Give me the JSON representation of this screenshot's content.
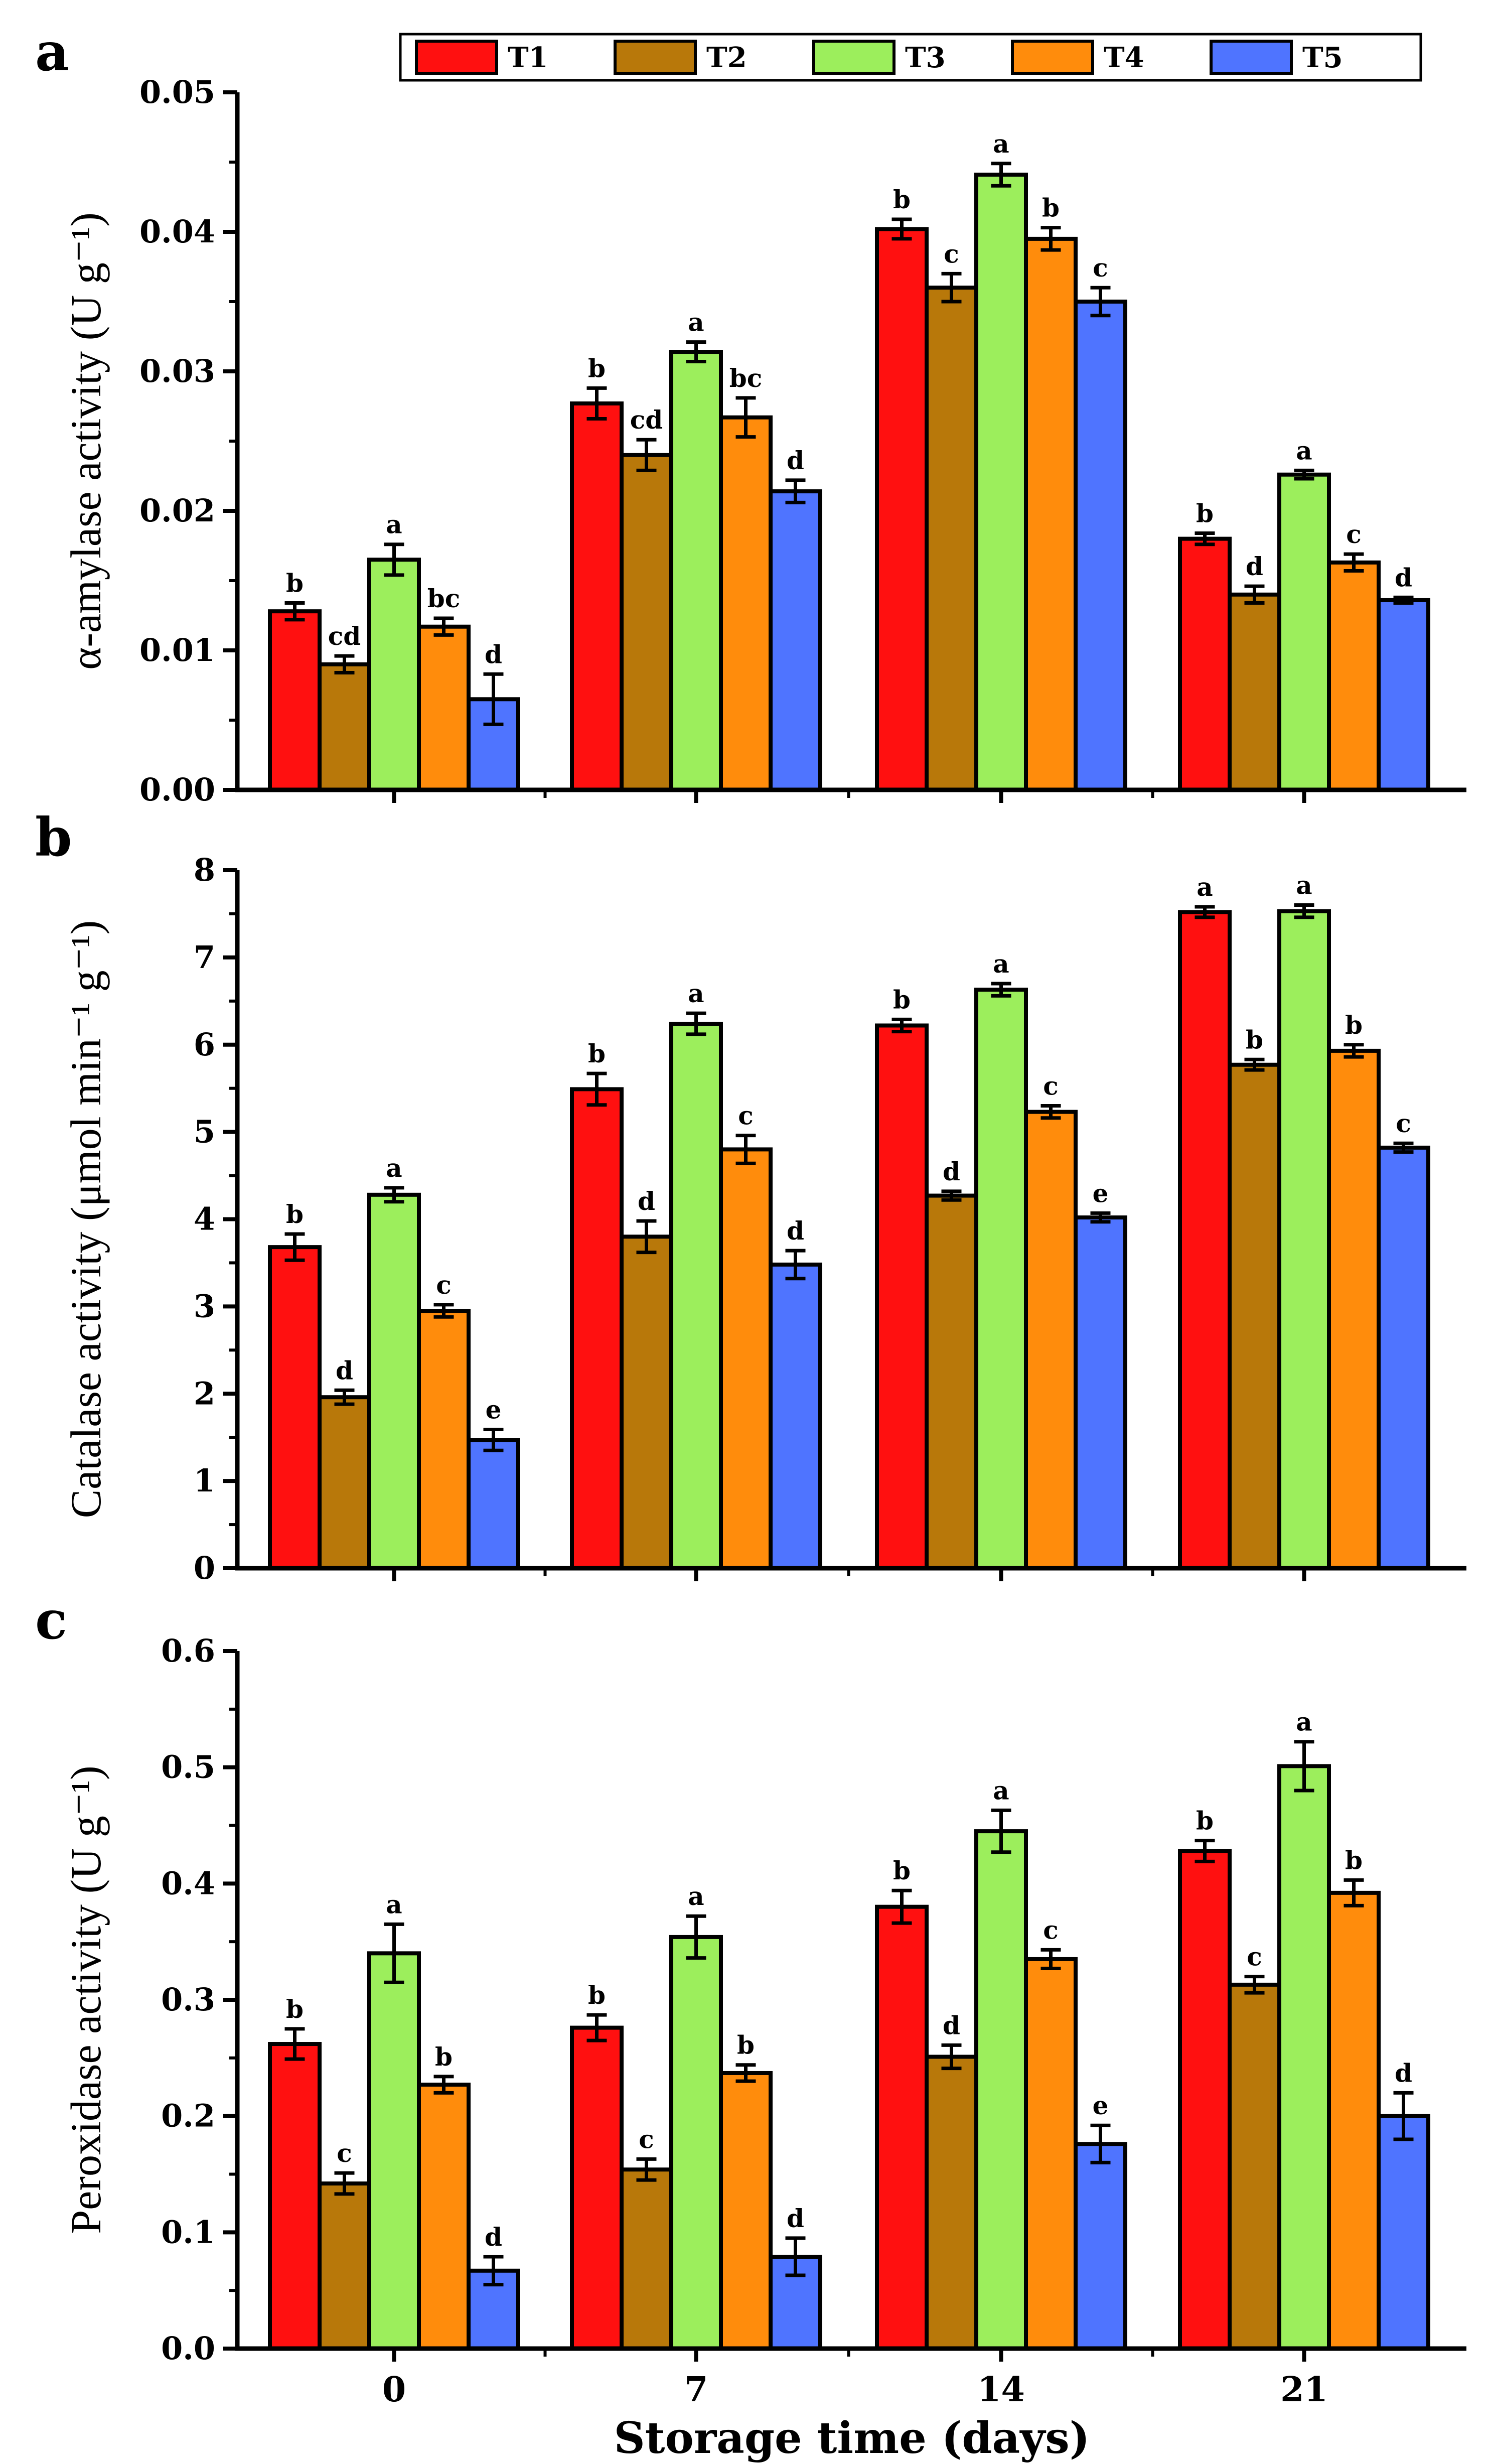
{
  "colors": {
    "T1": "#ff1010",
    "T2": "#b8780a",
    "T3": "#9cee5c",
    "T4": "#ff8c0c",
    "T5": "#4f74ff"
  },
  "legend": [
    "T1",
    "T2",
    "T3",
    "T4",
    "T5"
  ],
  "x_axis_title": "Storage time (days)",
  "chart_data": [
    {
      "type": "bar",
      "panel": "a",
      "ylabel": "α-amylase activity (U g⁻¹)",
      "ylim": [
        0,
        0.05
      ],
      "yticks": [
        "0.00",
        "0.01",
        "0.02",
        "0.03",
        "0.04",
        "0.05"
      ],
      "ytick_values": [
        0,
        0.01,
        0.02,
        0.03,
        0.04,
        0.05
      ],
      "categories": [
        "0",
        "7",
        "14",
        "21"
      ],
      "series": [
        {
          "name": "T1",
          "values": [
            0.0128,
            0.0277,
            0.0402,
            0.018
          ],
          "errors": [
            0.0006,
            0.0011,
            0.0007,
            0.0004
          ],
          "labels": [
            "b",
            "b",
            "b",
            "b"
          ]
        },
        {
          "name": "T2",
          "values": [
            0.009,
            0.024,
            0.036,
            0.014
          ],
          "errors": [
            0.0006,
            0.0011,
            0.001,
            0.0006
          ],
          "labels": [
            "cd",
            "cd",
            "c",
            "d"
          ]
        },
        {
          "name": "T3",
          "values": [
            0.0165,
            0.0314,
            0.0441,
            0.0226
          ],
          "errors": [
            0.0011,
            0.0007,
            0.0008,
            0.0003
          ],
          "labels": [
            "a",
            "a",
            "a",
            "a"
          ]
        },
        {
          "name": "T4",
          "values": [
            0.0117,
            0.0267,
            0.0395,
            0.0163
          ],
          "errors": [
            0.0006,
            0.0014,
            0.0008,
            0.0006
          ],
          "labels": [
            "bc",
            "bc",
            "b",
            "c"
          ]
        },
        {
          "name": "T5",
          "values": [
            0.0065,
            0.0214,
            0.035,
            0.0136
          ],
          "errors": [
            0.0018,
            0.0008,
            0.001,
            0.0002
          ],
          "labels": [
            "d",
            "d",
            "c",
            "d"
          ]
        }
      ]
    },
    {
      "type": "bar",
      "panel": "b",
      "ylabel": "Catalase activity (μmol min⁻¹ g⁻¹)",
      "ylim": [
        0,
        8
      ],
      "yticks": [
        "0",
        "1",
        "2",
        "3",
        "4",
        "5",
        "6",
        "7",
        "8"
      ],
      "ytick_values": [
        0,
        1,
        2,
        3,
        4,
        5,
        6,
        7,
        8
      ],
      "categories": [
        "0",
        "7",
        "14",
        "21"
      ],
      "series": [
        {
          "name": "T1",
          "values": [
            3.68,
            5.49,
            6.22,
            7.52
          ],
          "errors": [
            0.15,
            0.18,
            0.07,
            0.06
          ],
          "labels": [
            "b",
            "b",
            "b",
            "a"
          ]
        },
        {
          "name": "T2",
          "values": [
            1.96,
            3.8,
            4.27,
            5.77
          ],
          "errors": [
            0.08,
            0.18,
            0.05,
            0.06
          ],
          "labels": [
            "d",
            "d",
            "d",
            "b"
          ]
        },
        {
          "name": "T3",
          "values": [
            4.28,
            6.24,
            6.63,
            7.53
          ],
          "errors": [
            0.08,
            0.12,
            0.07,
            0.07
          ],
          "labels": [
            "a",
            "a",
            "a",
            "a"
          ]
        },
        {
          "name": "T4",
          "values": [
            2.95,
            4.8,
            5.23,
            5.93
          ],
          "errors": [
            0.07,
            0.16,
            0.07,
            0.07
          ],
          "labels": [
            "c",
            "c",
            "c",
            "b"
          ]
        },
        {
          "name": "T5",
          "values": [
            1.47,
            3.48,
            4.02,
            4.82
          ],
          "errors": [
            0.12,
            0.16,
            0.05,
            0.05
          ],
          "labels": [
            "e",
            "d",
            "e",
            "c"
          ]
        }
      ]
    },
    {
      "type": "bar",
      "panel": "c",
      "ylabel": "Peroxidase activity (U g⁻¹)",
      "ylim": [
        0,
        0.6
      ],
      "yticks": [
        "0.0",
        "0.1",
        "0.2",
        "0.3",
        "0.4",
        "0.5",
        "0.6"
      ],
      "ytick_values": [
        0,
        0.1,
        0.2,
        0.3,
        0.4,
        0.5,
        0.6
      ],
      "categories": [
        "0",
        "7",
        "14",
        "21"
      ],
      "series": [
        {
          "name": "T1",
          "values": [
            0.262,
            0.276,
            0.38,
            0.428
          ],
          "errors": [
            0.013,
            0.011,
            0.014,
            0.009
          ],
          "labels": [
            "b",
            "b",
            "b",
            "b"
          ]
        },
        {
          "name": "T2",
          "values": [
            0.142,
            0.154,
            0.251,
            0.313
          ],
          "errors": [
            0.009,
            0.009,
            0.01,
            0.007
          ],
          "labels": [
            "c",
            "c",
            "d",
            "c"
          ]
        },
        {
          "name": "T3",
          "values": [
            0.34,
            0.354,
            0.445,
            0.501
          ],
          "errors": [
            0.025,
            0.018,
            0.018,
            0.021
          ],
          "labels": [
            "a",
            "a",
            "a",
            "a"
          ]
        },
        {
          "name": "T4",
          "values": [
            0.227,
            0.237,
            0.335,
            0.392
          ],
          "errors": [
            0.007,
            0.007,
            0.008,
            0.011
          ],
          "labels": [
            "b",
            "b",
            "c",
            "b"
          ]
        },
        {
          "name": "T5",
          "values": [
            0.067,
            0.079,
            0.176,
            0.2
          ],
          "errors": [
            0.012,
            0.016,
            0.016,
            0.02
          ],
          "labels": [
            "d",
            "d",
            "e",
            "d"
          ]
        }
      ]
    }
  ]
}
